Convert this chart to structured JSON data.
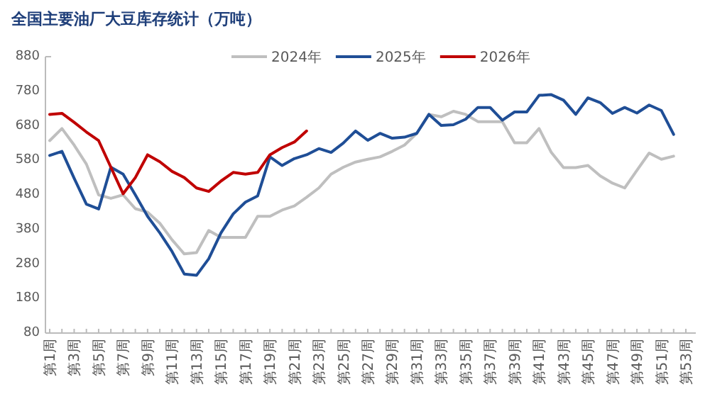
{
  "chart_data": {
    "type": "line",
    "title": "全国主要油厂大豆库存统计（万吨）",
    "categories": [
      "第1周",
      null,
      "第3周",
      null,
      "第5周",
      null,
      "第7周",
      null,
      "第9周",
      null,
      "第11周",
      null,
      "第13周",
      null,
      "第15周",
      null,
      "第17周",
      null,
      "第19周",
      null,
      "第21周",
      null,
      "第23周",
      null,
      "第25周",
      null,
      "第27周",
      null,
      "第29周",
      null,
      "第31周",
      null,
      "第33周",
      null,
      "第35周",
      null,
      "第37周",
      null,
      "第39周",
      null,
      "第41周",
      null,
      "第43周",
      null,
      "第45周",
      null,
      "第47周",
      null,
      "第49周",
      null,
      "第51周",
      null,
      "第53周"
    ],
    "series": [
      {
        "name": "2024年",
        "color": "#bfbfbf",
        "values": [
          637,
          672,
          624,
          569,
          480,
          470,
          480,
          440,
          430,
          398,
          350,
          309,
          313,
          377,
          357,
          357,
          357,
          418,
          418,
          436,
          448,
          473,
          500,
          540,
          560,
          575,
          583,
          590,
          606,
          624,
          658,
          713,
          706,
          722,
          713,
          692,
          692,
          692,
          631,
          631,
          672,
          603,
          559,
          559,
          565,
          535,
          514,
          500,
          551,
          601,
          583,
          592,
          null
        ]
      },
      {
        "name": "2025年",
        "color": "#1f4e96",
        "values": [
          594,
          606,
          528,
          453,
          439,
          560,
          540,
          480,
          418,
          370,
          316,
          251,
          247,
          295,
          370,
          425,
          459,
          477,
          590,
          565,
          585,
          596,
          614,
          603,
          630,
          665,
          638,
          658,
          644,
          647,
          658,
          713,
          681,
          683,
          699,
          733,
          733,
          696,
          720,
          720,
          768,
          770,
          754,
          713,
          761,
          747,
          716,
          733,
          717,
          740,
          724,
          655,
          null
        ]
      },
      {
        "name": "2026年",
        "color": "#c00000",
        "values": [
          713,
          716,
          690,
          662,
          637,
          560,
          483,
          530,
          596,
          576,
          548,
          530,
          500,
          490,
          520,
          545,
          540,
          545,
          596,
          617,
          633,
          665,
          null,
          null,
          null,
          null,
          null,
          null,
          null,
          null,
          null,
          null,
          null,
          null,
          null,
          null,
          null,
          null,
          null,
          null,
          null,
          null,
          null,
          null,
          null,
          null,
          null,
          null,
          null,
          null,
          null,
          null,
          null
        ]
      }
    ],
    "ylim": [
      80,
      880
    ],
    "yticks": [
      80,
      180,
      280,
      380,
      480,
      580,
      680,
      780,
      880
    ],
    "legend": "top",
    "grid": false,
    "marker": "none",
    "line_style": "solid"
  }
}
